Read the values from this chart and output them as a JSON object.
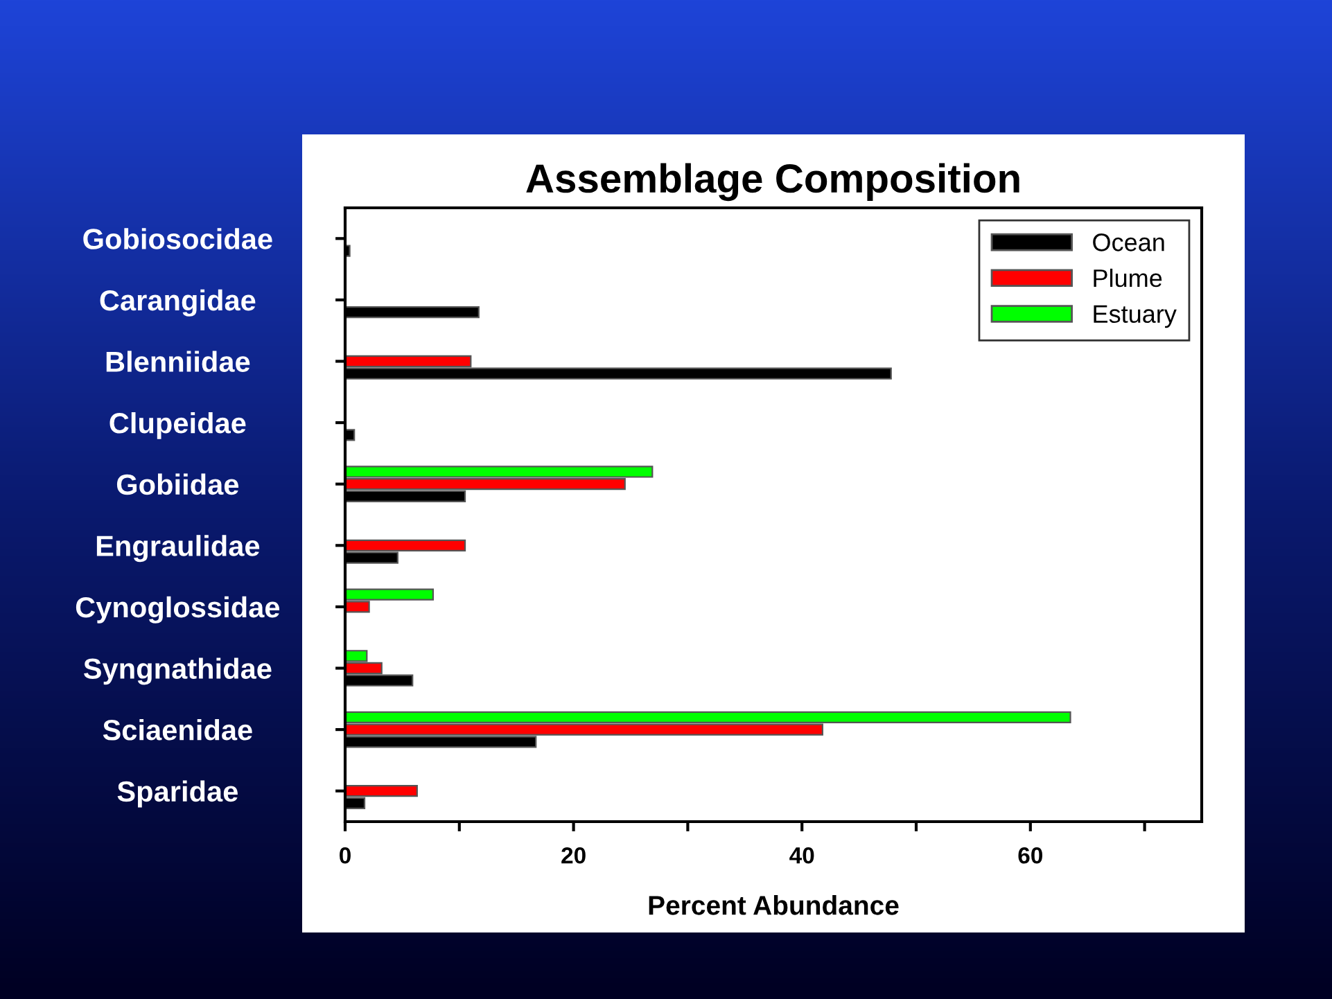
{
  "chart_data": {
    "type": "bar",
    "orientation": "horizontal",
    "title": "Assemblage Composition",
    "xlabel": "Percent Abundance",
    "categories": [
      "Gobiosocidae",
      "Carangidae",
      "Blenniidae",
      "Clupeidae",
      "Gobiidae",
      "Engraulidae",
      "Cynoglossidae",
      "Syngnathidae",
      "Sciaenidae",
      "Sparidae"
    ],
    "series": [
      {
        "name": "Ocean",
        "color": "#000000",
        "values": [
          0.4,
          11.7,
          47.8,
          0.8,
          10.5,
          4.6,
          null,
          5.9,
          16.7,
          1.7
        ]
      },
      {
        "name": "Plume",
        "color": "#ff0000",
        "values": [
          null,
          null,
          11.0,
          null,
          24.5,
          10.5,
          2.1,
          3.2,
          41.8,
          6.3
        ]
      },
      {
        "name": "Estuary",
        "color": "#00ff00",
        "values": [
          null,
          null,
          null,
          null,
          26.9,
          null,
          7.7,
          1.9,
          63.5,
          null
        ]
      }
    ],
    "xlim": [
      0,
      75
    ],
    "xticks": [
      0,
      {
        "value": 10,
        "label": null
      },
      20,
      {
        "value": 30,
        "label": null
      },
      40,
      {
        "value": 50,
        "label": null
      },
      60,
      {
        "value": 70,
        "label": null
      }
    ],
    "grid": false,
    "legend": "top right"
  }
}
